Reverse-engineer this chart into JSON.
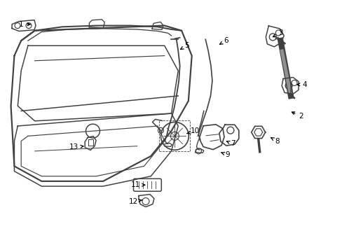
{
  "background_color": "#ffffff",
  "line_color": "#404040",
  "label_color": "#000000",
  "figsize": [
    4.89,
    3.6
  ],
  "dpi": 100,
  "parts_labels": [
    [
      1,
      0.06,
      0.905,
      0.095,
      0.905
    ],
    [
      2,
      0.88,
      0.54,
      0.845,
      0.56
    ],
    [
      3,
      0.82,
      0.87,
      0.79,
      0.85
    ],
    [
      4,
      0.89,
      0.665,
      0.86,
      0.665
    ],
    [
      5,
      0.545,
      0.82,
      0.52,
      0.8
    ],
    [
      6,
      0.66,
      0.84,
      0.635,
      0.82
    ],
    [
      7,
      0.68,
      0.43,
      0.66,
      0.44
    ],
    [
      8,
      0.81,
      0.44,
      0.79,
      0.455
    ],
    [
      9,
      0.665,
      0.385,
      0.645,
      0.395
    ],
    [
      10,
      0.57,
      0.48,
      0.545,
      0.47
    ],
    [
      11,
      0.395,
      0.265,
      0.425,
      0.265
    ],
    [
      12,
      0.39,
      0.2,
      0.415,
      0.205
    ],
    [
      13,
      0.215,
      0.415,
      0.245,
      0.42
    ]
  ]
}
